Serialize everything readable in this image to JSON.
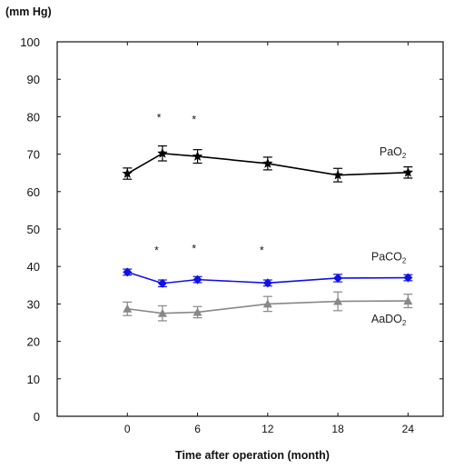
{
  "chart_data": {
    "type": "line",
    "ylabel": "(mm Hg)",
    "xlabel": "Time after operation (month)",
    "ylim": [
      0,
      100
    ],
    "xlim": [
      -6,
      27
    ],
    "yticks": [
      0,
      10,
      20,
      30,
      40,
      50,
      60,
      70,
      80,
      90,
      100
    ],
    "xticks": [
      0,
      6,
      12,
      18,
      24
    ],
    "grid": false,
    "series": [
      {
        "name": "PaO",
        "name_sub": "2",
        "color": "#000000",
        "marker": "star",
        "x": [
          0,
          3,
          6,
          12,
          18,
          24
        ],
        "y": [
          64.8,
          70.2,
          69.4,
          67.5,
          64.4,
          65.1
        ],
        "err": [
          1.5,
          2.0,
          1.8,
          1.7,
          1.8,
          1.5
        ]
      },
      {
        "name": "PaCO",
        "name_sub": "2",
        "color": "#1010e8",
        "marker": "diamond",
        "x": [
          0,
          3,
          6,
          12,
          18,
          24
        ],
        "y": [
          38.5,
          35.5,
          36.5,
          35.6,
          36.9,
          37.0
        ],
        "err": [
          0.8,
          0.9,
          0.8,
          0.8,
          1.0,
          0.8
        ]
      },
      {
        "name": "AaDO",
        "name_sub": "2",
        "color": "#888888",
        "marker": "triangle",
        "x": [
          0,
          3,
          6,
          12,
          18,
          24
        ],
        "y": [
          28.7,
          27.5,
          27.8,
          30.0,
          30.7,
          30.8
        ],
        "err": [
          1.8,
          2.0,
          1.5,
          2.0,
          2.5,
          1.8
        ]
      }
    ],
    "annotations": [
      {
        "text": "*",
        "x": 2.7,
        "y": 80
      },
      {
        "text": "*",
        "x": 5.7,
        "y": 79.5
      },
      {
        "text": "*",
        "x": 2.5,
        "y": 44.5
      },
      {
        "text": "*",
        "x": 5.7,
        "y": 45
      },
      {
        "text": "*",
        "x": 11.5,
        "y": 44.5
      }
    ]
  }
}
